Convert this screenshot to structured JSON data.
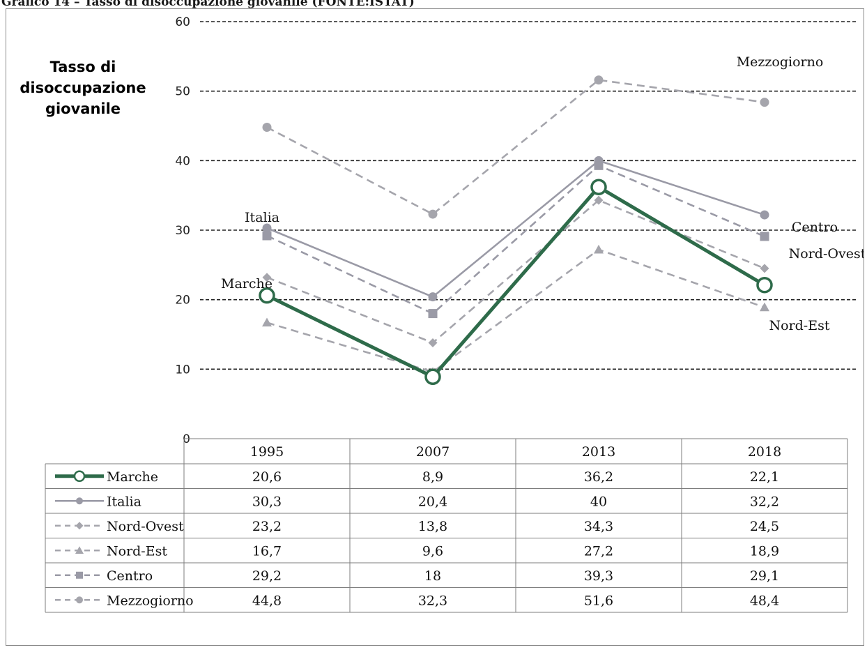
{
  "page": {
    "title": "Grafico 14 – Tasso di disoccupazione giovanile (FONTE:ISTAT)"
  },
  "chart_data": {
    "type": "line",
    "title": "Grafico 14 – Tasso di disoccupazione giovanile (FONTE:ISTAT)",
    "ylabel_lines": [
      "Tasso di",
      "disoccupazione",
      "giovanile"
    ],
    "xlabel": "",
    "ylim": [
      0,
      60
    ],
    "yticks": [
      0,
      10,
      20,
      30,
      40,
      50,
      60
    ],
    "grid": true,
    "legend": "data-table",
    "categories": [
      "1995",
      "2007",
      "2013",
      "2018"
    ],
    "series": [
      {
        "name": "Marche",
        "values": [
          20.6,
          8.9,
          36.2,
          22.1
        ],
        "labels": [
          "20,6",
          "8,9",
          "36,2",
          "22,1"
        ],
        "color": "#2e6b4a",
        "style": "solid-bold",
        "marker": "open-circle"
      },
      {
        "name": "Italia",
        "values": [
          30.3,
          20.4,
          40,
          32.2
        ],
        "labels": [
          "30,3",
          "20,4",
          "40",
          "32,2"
        ],
        "color": "#9a9aa6",
        "style": "solid",
        "marker": "circle"
      },
      {
        "name": "Nord-Ovest",
        "values": [
          23.2,
          13.8,
          34.3,
          24.5
        ],
        "labels": [
          "23,2",
          "13,8",
          "34,3",
          "24,5"
        ],
        "color": "#a5a5ac",
        "style": "dashed",
        "marker": "diamond"
      },
      {
        "name": "Nord-Est",
        "values": [
          16.7,
          9.6,
          27.2,
          18.9
        ],
        "labels": [
          "16,7",
          "9,6",
          "27,2",
          "18,9"
        ],
        "color": "#a5a5ac",
        "style": "dashed",
        "marker": "triangle"
      },
      {
        "name": "Centro",
        "values": [
          29.2,
          18,
          39.3,
          29.1
        ],
        "labels": [
          "29,2",
          "18",
          "39,3",
          "29,1"
        ],
        "color": "#9a9aa6",
        "style": "dashed",
        "marker": "square"
      },
      {
        "name": "Mezzogiorno",
        "values": [
          44.8,
          32.3,
          51.6,
          48.4
        ],
        "labels": [
          "44,8",
          "32,3",
          "51,6",
          "48,4"
        ],
        "color": "#a5a5ac",
        "style": "dashed",
        "marker": "circle"
      }
    ],
    "annotations": [
      "Italia",
      "Marche",
      "Mezzogiorno",
      "Centro",
      "Nord-Ovest",
      "Nord-Est"
    ]
  }
}
